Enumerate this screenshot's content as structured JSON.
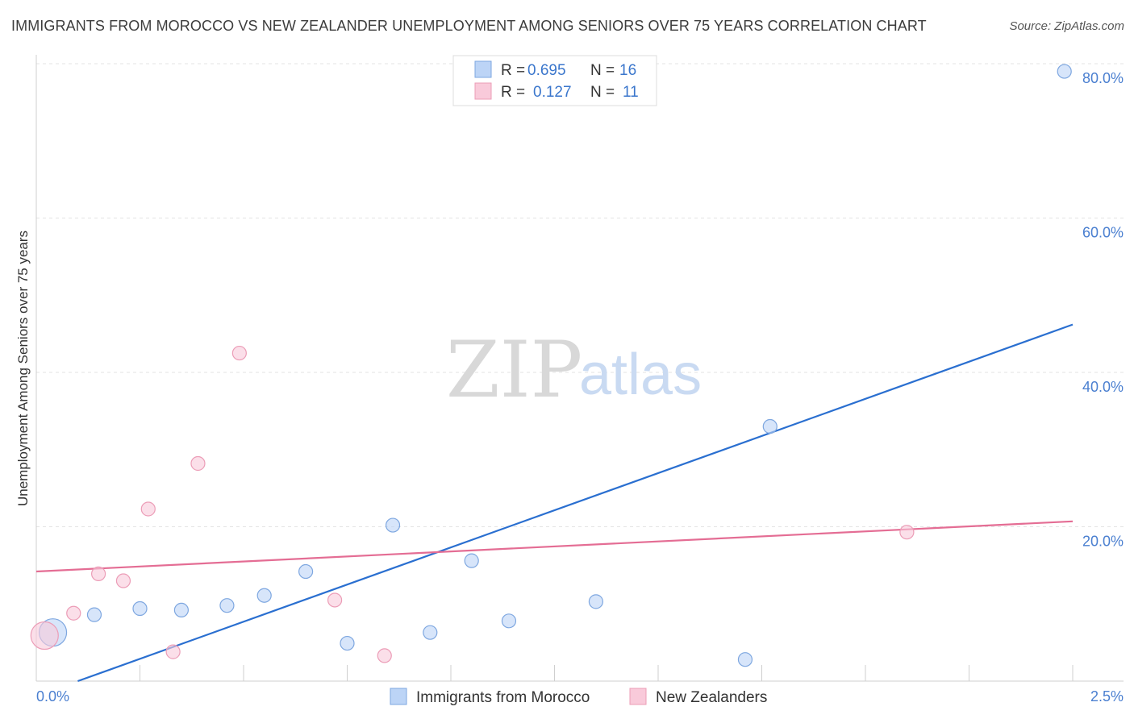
{
  "title": "IMMIGRANTS FROM MOROCCO VS NEW ZEALANDER UNEMPLOYMENT AMONG SENIORS OVER 75 YEARS CORRELATION CHART",
  "source": "Source: ZipAtlas.com",
  "watermark": {
    "zip": "ZIP",
    "atlas": "atlas"
  },
  "colors": {
    "blue_fill": "#bcd4f6",
    "blue_stroke": "#7ea7e0",
    "blue_line": "#2a6fd0",
    "pink_fill": "#f9cada",
    "pink_stroke": "#ec9db7",
    "pink_line": "#e46d94",
    "grid": "#e3e3e3"
  },
  "legend": {
    "rows": [
      {
        "r_label": "R = ",
        "r_value": "0.695",
        "n_label": "N = ",
        "n_value": "16",
        "series": "blue"
      },
      {
        "r_label": "R = ",
        "r_value": "0.127",
        "n_label": "N = ",
        "n_value": "11",
        "series": "pink"
      }
    ]
  },
  "chart_data": {
    "type": "scatter",
    "title": "IMMIGRANTS FROM MOROCCO VS NEW ZEALANDER UNEMPLOYMENT AMONG SENIORS OVER 75 YEARS CORRELATION CHART",
    "xlabel": "",
    "ylabel": "Unemployment Among Seniors over 75 years",
    "xlim": [
      0,
      2.5
    ],
    "ylim": [
      0,
      80
    ],
    "x_tick_labels": [
      {
        "value": 0,
        "label": "0.0%"
      },
      {
        "value": 2.5,
        "label": "2.5%"
      }
    ],
    "y_tick_labels": [
      {
        "value": 20,
        "label": "20.0%"
      },
      {
        "value": 40,
        "label": "40.0%"
      },
      {
        "value": 60,
        "label": "60.0%"
      },
      {
        "value": 80,
        "label": "80.0%"
      }
    ],
    "grid": true,
    "legend_position": "top-center",
    "series": [
      {
        "name": "Immigrants from Morocco",
        "color": "blue",
        "points": [
          {
            "x": 0.04,
            "y": 6.3,
            "size": "large"
          },
          {
            "x": 0.14,
            "y": 8.6
          },
          {
            "x": 0.25,
            "y": 9.4
          },
          {
            "x": 0.35,
            "y": 9.2
          },
          {
            "x": 0.46,
            "y": 9.8
          },
          {
            "x": 0.55,
            "y": 11.1
          },
          {
            "x": 0.65,
            "y": 14.2
          },
          {
            "x": 0.75,
            "y": 4.9
          },
          {
            "x": 0.86,
            "y": 20.2
          },
          {
            "x": 0.95,
            "y": 6.3
          },
          {
            "x": 1.05,
            "y": 15.6
          },
          {
            "x": 1.14,
            "y": 7.8
          },
          {
            "x": 1.35,
            "y": 10.3
          },
          {
            "x": 1.71,
            "y": 2.8
          },
          {
            "x": 1.77,
            "y": 33.0
          },
          {
            "x": 2.48,
            "y": 79.0
          }
        ],
        "trend": {
          "x": [
            0.1,
            2.5
          ],
          "y": [
            0.0,
            46.2
          ]
        }
      },
      {
        "name": "New Zealanders",
        "color": "pink",
        "points": [
          {
            "x": 0.02,
            "y": 5.9,
            "size": "large"
          },
          {
            "x": 0.09,
            "y": 8.8
          },
          {
            "x": 0.15,
            "y": 13.9
          },
          {
            "x": 0.21,
            "y": 13.0
          },
          {
            "x": 0.27,
            "y": 22.3
          },
          {
            "x": 0.33,
            "y": 3.8
          },
          {
            "x": 0.39,
            "y": 28.2
          },
          {
            "x": 0.49,
            "y": 42.5
          },
          {
            "x": 0.72,
            "y": 10.5
          },
          {
            "x": 0.84,
            "y": 3.3
          },
          {
            "x": 2.1,
            "y": 19.3
          }
        ],
        "trend": {
          "x": [
            0.0,
            2.5
          ],
          "y": [
            14.2,
            20.7
          ]
        }
      }
    ],
    "bottom_legend": [
      "Immigrants from Morocco",
      "New Zealanders"
    ]
  }
}
